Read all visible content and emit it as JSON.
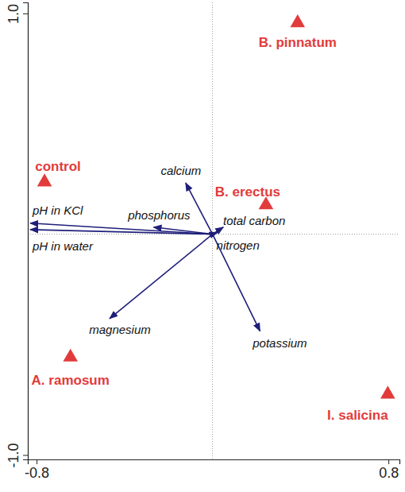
{
  "chart_data": {
    "type": "biplot",
    "xlim": [
      -0.84,
      0.85
    ],
    "ylim": [
      -1.02,
      1.05
    ],
    "xticks": [
      -0.8,
      0.8
    ],
    "yticks": [
      {
        "value": -1.0,
        "label": "-1.0"
      },
      {
        "value": 1.0,
        "label": "1.0"
      }
    ],
    "series": [
      {
        "type": "scatter",
        "marker": "triangle",
        "color": "#e23b3b",
        "labels": [
          "control",
          "B. pinnatum",
          "B. erectus",
          "A. ramosum",
          "I. salicina"
        ],
        "x": [
          -0.764,
          0.387,
          0.243,
          -0.646,
          0.797
        ],
        "values": [
          0.236,
          0.957,
          0.132,
          -0.557,
          -0.725
        ]
      },
      {
        "type": "arrow",
        "color": "#1f1f7a",
        "labels": [
          "calcium",
          "phosphorus",
          "pH in KCl",
          "pH in water",
          "total carbon",
          "nitrogen",
          "magnesium",
          "potassium"
        ],
        "x": [
          -0.122,
          -0.268,
          -0.829,
          -0.829,
          0.049,
          0.022,
          -0.468,
          0.216
        ],
        "values": [
          0.232,
          0.032,
          0.05,
          0.021,
          0.032,
          0.008,
          -0.382,
          -0.439
        ]
      }
    ]
  }
}
